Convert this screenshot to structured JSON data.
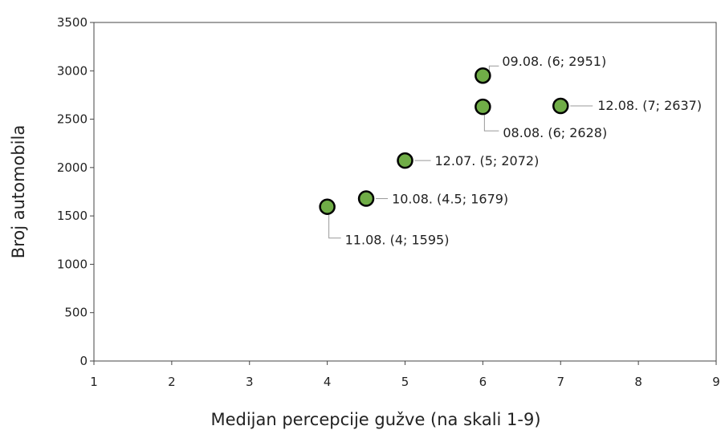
{
  "chart_data": {
    "type": "scatter",
    "xlabel": "Medijan percepcije gužve (na skali 1-9)",
    "ylabel": "Broj automobila",
    "xlim": [
      1,
      9
    ],
    "ylim": [
      0,
      3500
    ],
    "xticks": [
      1,
      2,
      3,
      4,
      5,
      6,
      7,
      8,
      9
    ],
    "yticks": [
      0,
      500,
      1000,
      1500,
      2000,
      2500,
      3000,
      3500
    ],
    "grid": false,
    "marker_color": "#70ad47",
    "marker_edge_color": "#000000",
    "points": [
      {
        "x": 6,
        "y": 2951,
        "label": "09.08. (6; 2951)"
      },
      {
        "x": 7,
        "y": 2637,
        "label": "12.08. (7; 2637)"
      },
      {
        "x": 6,
        "y": 2628,
        "label": "08.08. (6; 2628)"
      },
      {
        "x": 5,
        "y": 2072,
        "label": "12.07. (5; 2072)"
      },
      {
        "x": 4.5,
        "y": 1679,
        "label": "10.08. (4.5; 1679)"
      },
      {
        "x": 4,
        "y": 1595,
        "label": "11.08. (4; 1595)"
      }
    ]
  }
}
